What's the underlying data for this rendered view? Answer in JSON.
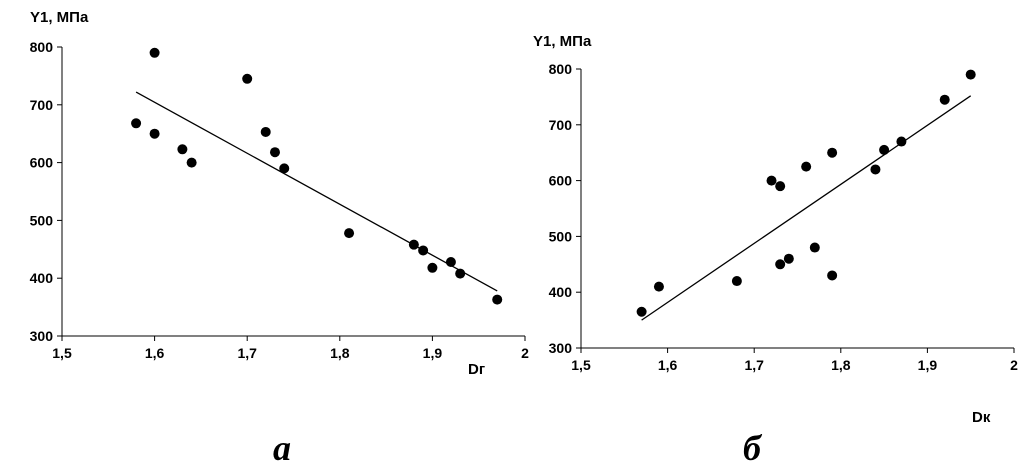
{
  "chart_data": [
    {
      "type": "scatter",
      "caption": "а",
      "ylabel": "Y1, МПа",
      "xlabel": "Dг",
      "xlim": [
        1.5,
        2.0
      ],
      "ylim": [
        300,
        800
      ],
      "xticks": [
        "1,5",
        "1,6",
        "1,7",
        "1,8",
        "1,9",
        "2"
      ],
      "yticks": [
        "300",
        "400",
        "500",
        "600",
        "700",
        "800"
      ],
      "grid": false,
      "points": [
        {
          "x": 1.58,
          "y": 668
        },
        {
          "x": 1.6,
          "y": 790
        },
        {
          "x": 1.6,
          "y": 650
        },
        {
          "x": 1.63,
          "y": 623
        },
        {
          "x": 1.64,
          "y": 600
        },
        {
          "x": 1.7,
          "y": 745
        },
        {
          "x": 1.72,
          "y": 653
        },
        {
          "x": 1.73,
          "y": 618
        },
        {
          "x": 1.74,
          "y": 590
        },
        {
          "x": 1.81,
          "y": 478
        },
        {
          "x": 1.88,
          "y": 458
        },
        {
          "x": 1.89,
          "y": 448
        },
        {
          "x": 1.9,
          "y": 418
        },
        {
          "x": 1.92,
          "y": 428
        },
        {
          "x": 1.93,
          "y": 408
        },
        {
          "x": 1.97,
          "y": 363
        }
      ],
      "trendline": {
        "x": [
          1.58,
          1.97
        ],
        "y": [
          722,
          378
        ]
      }
    },
    {
      "type": "scatter",
      "caption": "б",
      "ylabel": "Y1, МПа",
      "xlabel": "Dк",
      "xlim": [
        1.5,
        2.0
      ],
      "ylim": [
        300,
        800
      ],
      "xticks": [
        "1,5",
        "1,6",
        "1,7",
        "1,8",
        "1,9",
        "2"
      ],
      "yticks": [
        "300",
        "400",
        "500",
        "600",
        "700",
        "800"
      ],
      "grid": false,
      "points": [
        {
          "x": 1.57,
          "y": 365
        },
        {
          "x": 1.59,
          "y": 410
        },
        {
          "x": 1.68,
          "y": 420
        },
        {
          "x": 1.72,
          "y": 600
        },
        {
          "x": 1.73,
          "y": 590
        },
        {
          "x": 1.73,
          "y": 450
        },
        {
          "x": 1.74,
          "y": 460
        },
        {
          "x": 1.76,
          "y": 625
        },
        {
          "x": 1.77,
          "y": 480
        },
        {
          "x": 1.79,
          "y": 650
        },
        {
          "x": 1.79,
          "y": 430
        },
        {
          "x": 1.84,
          "y": 620
        },
        {
          "x": 1.85,
          "y": 655
        },
        {
          "x": 1.87,
          "y": 670
        },
        {
          "x": 1.92,
          "y": 745
        },
        {
          "x": 1.95,
          "y": 790
        }
      ],
      "trendline": {
        "x": [
          1.57,
          1.95
        ],
        "y": [
          350,
          752
        ]
      }
    }
  ]
}
